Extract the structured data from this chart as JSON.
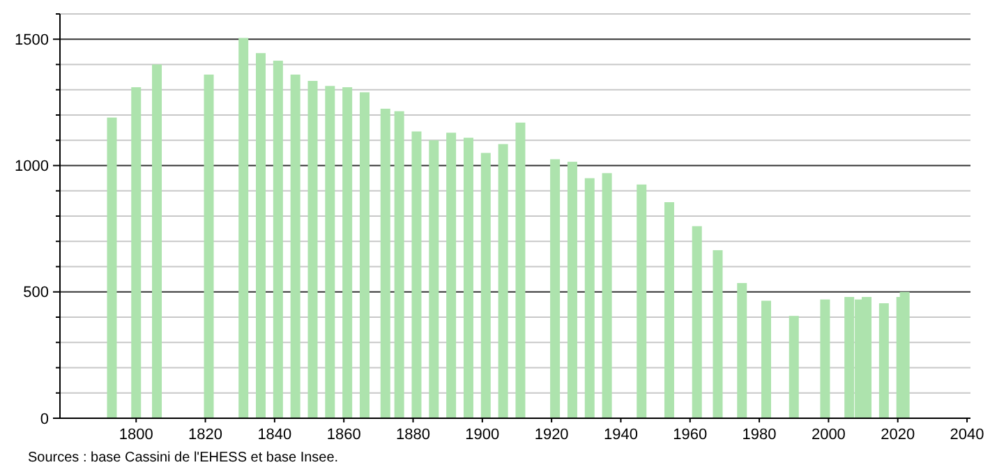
{
  "chart_data": {
    "type": "bar",
    "color": "#ade3ad",
    "x": [
      1793,
      1800,
      1806,
      1821,
      1831,
      1836,
      1841,
      1846,
      1851,
      1856,
      1861,
      1866,
      1872,
      1876,
      1881,
      1886,
      1891,
      1896,
      1901,
      1906,
      1911,
      1921,
      1926,
      1931,
      1936,
      1946,
      1954,
      1962,
      1968,
      1975,
      1982,
      1990,
      1999,
      2006,
      2009,
      2011,
      2016,
      2021,
      2022
    ],
    "values": [
      1190,
      1310,
      1400,
      1360,
      1505,
      1445,
      1415,
      1360,
      1335,
      1315,
      1310,
      1290,
      1225,
      1215,
      1135,
      1100,
      1130,
      1110,
      1050,
      1085,
      1170,
      1025,
      1015,
      950,
      970,
      925,
      855,
      760,
      665,
      535,
      465,
      405,
      470,
      480,
      470,
      480,
      455,
      480,
      500
    ],
    "xlim": [
      1778,
      2041
    ],
    "xticks": [
      1800,
      1820,
      1840,
      1860,
      1880,
      1900,
      1920,
      1940,
      1960,
      1980,
      2000,
      2020,
      2040
    ],
    "ylim": [
      0,
      1600
    ],
    "yticks": [
      0,
      {
        "value": 100,
        "label": null
      },
      {
        "value": 200,
        "label": null
      },
      {
        "value": 300,
        "label": null
      },
      {
        "value": 400,
        "label": null
      },
      500,
      {
        "value": 600,
        "label": null
      },
      {
        "value": 700,
        "label": null
      },
      {
        "value": 800,
        "label": null
      },
      {
        "value": 900,
        "label": null
      },
      1000,
      {
        "value": 1100,
        "label": null
      },
      {
        "value": 1200,
        "label": null
      },
      {
        "value": 1300,
        "label": null
      },
      {
        "value": 1400,
        "label": null
      },
      1500,
      {
        "value": 1600,
        "label": null
      }
    ],
    "grid": "y",
    "annotations": [
      "Sources : base Cassini de l'EHESS et base Insee."
    ]
  }
}
